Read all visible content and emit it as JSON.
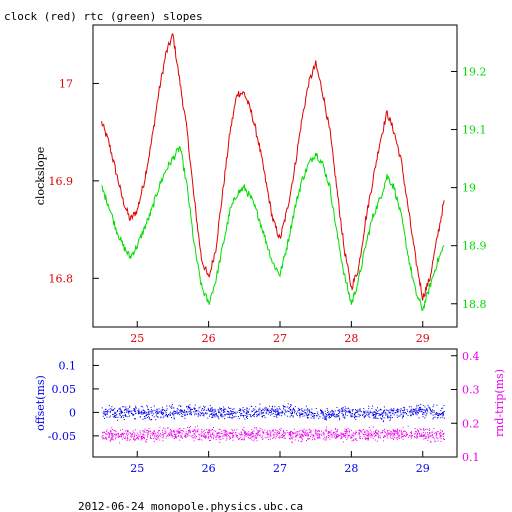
{
  "title": "clock (red) rtc (green) slopes",
  "footer": "2012-06-24  monopole.physics.ubc.ca",
  "colors": {
    "red": "#e00000",
    "green": "#00dd00",
    "blue": "#0000ee",
    "magenta": "#ee00ee",
    "black": "#000000"
  },
  "chart_data": [
    {
      "type": "line",
      "title": "clock (red) rtc (green) slopes",
      "xlim": [
        24.38,
        29.48
      ],
      "x_ticks": [
        25,
        26,
        27,
        28,
        29
      ],
      "x_tick_labels": [
        "25",
        "26",
        "27",
        "28",
        "29"
      ],
      "ylabel_left": "clockslope",
      "ylim_left": [
        16.75,
        17.06
      ],
      "y_ticks_left": [
        16.8,
        16.9,
        17
      ],
      "y_tick_labels_left": [
        "16.8",
        "16.9",
        "17"
      ],
      "ylim_right": [
        18.76,
        19.28
      ],
      "y_ticks_right": [
        18.8,
        18.9,
        19,
        19.1,
        19.2
      ],
      "y_tick_labels_right": [
        "18.8",
        "18.9",
        "19",
        "19.1",
        "19.2"
      ],
      "series": [
        {
          "name": "clock",
          "color": "#e00000",
          "axis": "left",
          "x": [
            24.5,
            24.6,
            24.7,
            24.8,
            24.9,
            25.0,
            25.1,
            25.2,
            25.3,
            25.4,
            25.5,
            25.6,
            25.7,
            25.8,
            25.9,
            26.0,
            26.1,
            26.2,
            26.3,
            26.4,
            26.5,
            26.6,
            26.7,
            26.8,
            26.9,
            27.0,
            27.1,
            27.2,
            27.3,
            27.4,
            27.5,
            27.6,
            27.7,
            27.8,
            27.9,
            28.0,
            28.1,
            28.2,
            28.3,
            28.4,
            28.5,
            28.6,
            28.7,
            28.8,
            28.9,
            29.0,
            29.1,
            29.2,
            29.3
          ],
          "values": [
            16.96,
            16.94,
            16.91,
            16.88,
            16.86,
            16.87,
            16.9,
            16.94,
            16.99,
            17.03,
            17.05,
            17.0,
            16.95,
            16.88,
            16.82,
            16.8,
            16.83,
            16.89,
            16.95,
            16.99,
            16.99,
            16.97,
            16.94,
            16.9,
            16.86,
            16.84,
            16.87,
            16.91,
            16.96,
            17.0,
            17.02,
            16.99,
            16.95,
            16.89,
            16.83,
            16.79,
            16.81,
            16.86,
            16.9,
            16.94,
            16.97,
            16.95,
            16.92,
            16.87,
            16.82,
            16.78,
            16.8,
            16.84,
            16.88
          ]
        },
        {
          "name": "rtc",
          "color": "#00dd00",
          "axis": "right",
          "x": [
            24.5,
            24.6,
            24.7,
            24.8,
            24.9,
            25.0,
            25.1,
            25.2,
            25.3,
            25.4,
            25.5,
            25.6,
            25.7,
            25.8,
            25.9,
            26.0,
            26.1,
            26.2,
            26.3,
            26.4,
            26.5,
            26.6,
            26.7,
            26.8,
            26.9,
            27.0,
            27.1,
            27.2,
            27.3,
            27.4,
            27.5,
            27.6,
            27.7,
            27.8,
            27.9,
            28.0,
            28.1,
            28.2,
            28.3,
            28.4,
            28.5,
            28.6,
            28.7,
            28.8,
            28.9,
            29.0,
            29.1,
            29.2,
            29.3
          ],
          "values": [
            19.0,
            18.97,
            18.93,
            18.9,
            18.88,
            18.9,
            18.93,
            18.96,
            19.0,
            19.03,
            19.05,
            19.07,
            19.0,
            18.9,
            18.83,
            18.8,
            18.84,
            18.9,
            18.96,
            18.99,
            19.0,
            18.98,
            18.95,
            18.91,
            18.87,
            18.85,
            18.9,
            18.96,
            19.01,
            19.04,
            19.06,
            19.04,
            19.0,
            18.92,
            18.85,
            18.8,
            18.84,
            18.9,
            18.95,
            18.98,
            19.02,
            19.0,
            18.95,
            18.88,
            18.82,
            18.79,
            18.83,
            18.87,
            18.9
          ]
        }
      ]
    },
    {
      "type": "scatter",
      "xlim": [
        24.38,
        29.48
      ],
      "x_ticks": [
        25,
        26,
        27,
        28,
        29
      ],
      "x_tick_labels": [
        "25",
        "26",
        "27",
        "28",
        "29"
      ],
      "ylabel_left": "offset(ms)",
      "ylim_left": [
        -0.095,
        0.135
      ],
      "y_ticks_left": [
        -0.05,
        0,
        0.05,
        0.1
      ],
      "y_tick_labels_left": [
        "-0.05",
        "0",
        "0.05",
        "0.1"
      ],
      "ylabel_right": "rnd-trip(ms)",
      "ylim_right": [
        0.1,
        0.42
      ],
      "y_ticks_right": [
        0.1,
        0.2,
        0.3,
        0.4
      ],
      "y_tick_labels_right": [
        "0.1",
        "0.2",
        "0.3",
        "0.4"
      ],
      "series": [
        {
          "name": "offset",
          "color": "#0000ee",
          "axis": "left",
          "x": [
            24.5,
            24.9,
            25.3,
            25.7,
            26.1,
            26.5,
            26.9,
            27.3,
            27.7,
            28.1,
            28.5,
            28.9,
            29.3
          ],
          "values": [
            0.0,
            0.002,
            -0.001,
            0.003,
            0.0,
            -0.002,
            0.005,
            0.001,
            -0.003,
            0.0,
            -0.002,
            0.004,
            0.0
          ]
        },
        {
          "name": "rnd-trip",
          "color": "#ee00ee",
          "axis": "right",
          "x": [
            24.5,
            24.9,
            25.3,
            25.7,
            26.1,
            26.5,
            26.9,
            27.3,
            27.7,
            28.1,
            28.5,
            28.9,
            29.3
          ],
          "values": [
            0.17,
            0.165,
            0.168,
            0.172,
            0.166,
            0.168,
            0.17,
            0.166,
            0.169,
            0.167,
            0.168,
            0.17,
            0.166
          ]
        }
      ]
    }
  ]
}
